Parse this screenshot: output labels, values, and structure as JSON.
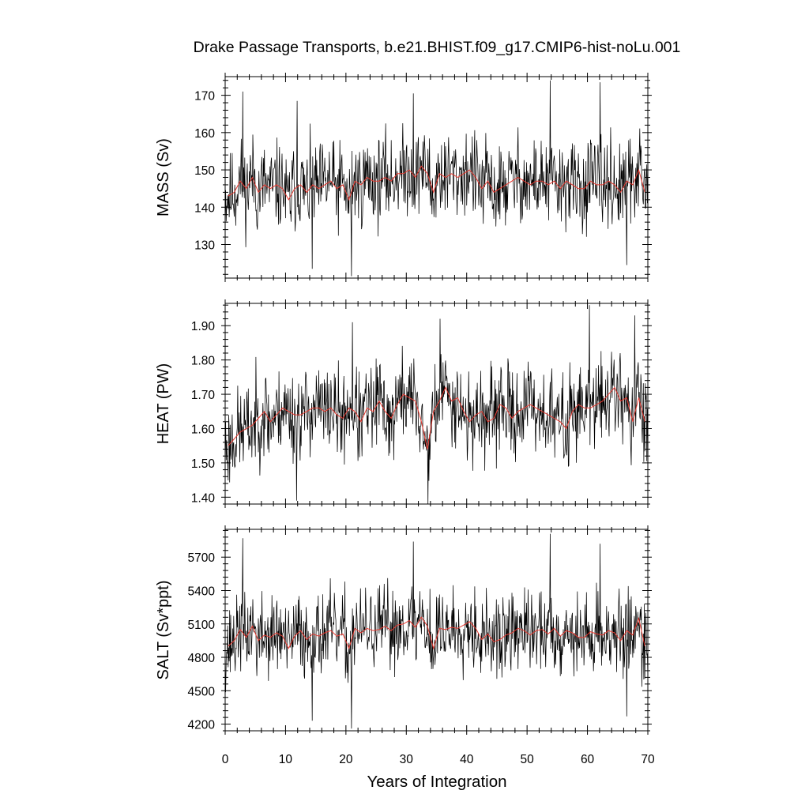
{
  "chart_data": {
    "title": "Drake Passage Transports, b.e21.BHIST.f09_g17.CMIP6-hist-noLu.001",
    "xlabel": "Years of Integration",
    "xlim": [
      0,
      70
    ],
    "xticks": [
      0,
      10,
      20,
      30,
      40,
      50,
      60,
      70
    ],
    "xtick_labels": [
      "0",
      "10",
      "20",
      "30",
      "40",
      "50",
      "60",
      "70"
    ],
    "grid": false,
    "colors": {
      "monthly": "#000000",
      "annual": "#e8382f"
    },
    "panels": [
      {
        "type": "line",
        "ylabel": "MASS (Sv)",
        "ylim": [
          121,
          175
        ],
        "yticks": [
          130,
          140,
          150,
          160,
          170
        ],
        "ytick_labels": [
          "130",
          "140",
          "150",
          "160",
          "170"
        ],
        "annual_x": [
          0.5,
          1.5,
          2.5,
          3.5,
          4.5,
          5.5,
          6.5,
          7.5,
          8.5,
          9.5,
          10.5,
          11.5,
          12.5,
          13.5,
          14.5,
          15.5,
          16.5,
          17.5,
          18.5,
          19.5,
          20.5,
          21.5,
          22.5,
          23.5,
          24.5,
          25.5,
          26.5,
          27.5,
          28.5,
          29.5,
          30.5,
          31.5,
          32.5,
          33.5,
          34.5,
          35.5,
          36.5,
          37.5,
          38.5,
          39.5,
          40.5,
          41.5,
          42.5,
          43.5,
          44.5,
          45.5,
          46.5,
          47.5,
          48.5,
          49.5,
          50.5,
          51.5,
          52.5,
          53.5,
          54.5,
          55.5,
          56.5,
          57.5,
          58.5,
          59.5,
          60.5,
          61.5,
          62.5,
          63.5,
          64.5,
          65.5,
          66.5,
          67.5,
          68.5,
          69.5
        ],
        "annual": [
          143,
          144,
          147,
          145,
          148,
          144,
          146,
          145,
          146,
          145,
          142,
          145,
          146,
          144,
          146,
          145,
          146,
          147,
          145,
          146,
          142,
          147,
          146,
          148,
          147,
          147,
          148,
          147,
          149,
          149,
          150,
          148,
          151,
          149,
          144,
          149,
          148,
          149,
          148,
          149,
          150,
          148,
          145,
          147,
          144,
          145,
          146,
          147,
          148,
          147,
          146,
          147,
          147,
          146,
          147,
          145,
          147,
          146,
          145,
          145,
          147,
          146,
          146,
          147,
          146,
          144,
          147,
          146,
          150,
          144
        ],
        "monthly_seed": 11,
        "monthly_sd": 8.5,
        "monthly_spikes": [
          [
            2.9,
            171
          ],
          [
            14.4,
            123.5
          ],
          [
            20.9,
            121.5
          ],
          [
            53.8,
            174
          ],
          [
            62.1,
            173.5
          ],
          [
            66.5,
            124.5
          ],
          [
            31.2,
            170.5
          ],
          [
            11.9,
            168.5
          ]
        ]
      },
      {
        "type": "line",
        "ylabel": "HEAT (PW)",
        "ylim": [
          1.38,
          1.965
        ],
        "yticks": [
          1.4,
          1.5,
          1.6,
          1.7,
          1.8,
          1.9
        ],
        "ytick_labels": [
          "1.40",
          "1.50",
          "1.60",
          "1.70",
          "1.80",
          "1.90"
        ],
        "annual_x": [
          0.5,
          1.5,
          2.5,
          3.5,
          4.5,
          5.5,
          6.5,
          7.5,
          8.5,
          9.5,
          10.5,
          11.5,
          12.5,
          13.5,
          14.5,
          15.5,
          16.5,
          17.5,
          18.5,
          19.5,
          20.5,
          21.5,
          22.5,
          23.5,
          24.5,
          25.5,
          26.5,
          27.5,
          28.5,
          29.5,
          30.5,
          31.5,
          32.5,
          33.5,
          34.5,
          35.5,
          36.5,
          37.5,
          38.5,
          39.5,
          40.5,
          41.5,
          42.5,
          43.5,
          44.5,
          45.5,
          46.5,
          47.5,
          48.5,
          49.5,
          50.5,
          51.5,
          52.5,
          53.5,
          54.5,
          55.5,
          56.5,
          57.5,
          58.5,
          59.5,
          60.5,
          61.5,
          62.5,
          63.5,
          64.5,
          65.5,
          66.5,
          67.5,
          68.5,
          69.5
        ],
        "annual": [
          1.55,
          1.57,
          1.59,
          1.6,
          1.61,
          1.63,
          1.65,
          1.62,
          1.64,
          1.66,
          1.65,
          1.64,
          1.64,
          1.65,
          1.66,
          1.66,
          1.65,
          1.66,
          1.64,
          1.63,
          1.66,
          1.65,
          1.62,
          1.66,
          1.65,
          1.68,
          1.65,
          1.63,
          1.67,
          1.7,
          1.69,
          1.68,
          1.62,
          1.54,
          1.65,
          1.68,
          1.72,
          1.68,
          1.69,
          1.65,
          1.62,
          1.64,
          1.65,
          1.62,
          1.63,
          1.67,
          1.66,
          1.63,
          1.65,
          1.66,
          1.67,
          1.66,
          1.65,
          1.64,
          1.63,
          1.62,
          1.6,
          1.65,
          1.67,
          1.66,
          1.66,
          1.67,
          1.68,
          1.7,
          1.72,
          1.68,
          1.69,
          1.62,
          1.69,
          1.62
        ],
        "monthly_seed": 23,
        "monthly_sd": 0.095,
        "monthly_spikes": [
          [
            60.3,
            1.96
          ],
          [
            33.6,
            1.38
          ],
          [
            11.8,
            1.39
          ],
          [
            67.8,
            1.93
          ],
          [
            35.6,
            1.92
          ],
          [
            21.1,
            1.91
          ]
        ]
      },
      {
        "type": "line",
        "ylabel": "SALT (Sv*ppt)",
        "ylim": [
          4140,
          5950
        ],
        "yticks": [
          4200,
          4500,
          4800,
          5100,
          5400,
          5700
        ],
        "ytick_labels": [
          "4200",
          "4500",
          "4800",
          "5100",
          "5400",
          "5700"
        ],
        "annual_x": [
          0.5,
          1.5,
          2.5,
          3.5,
          4.5,
          5.5,
          6.5,
          7.5,
          8.5,
          9.5,
          10.5,
          11.5,
          12.5,
          13.5,
          14.5,
          15.5,
          16.5,
          17.5,
          18.5,
          19.5,
          20.5,
          21.5,
          22.5,
          23.5,
          24.5,
          25.5,
          26.5,
          27.5,
          28.5,
          29.5,
          30.5,
          31.5,
          32.5,
          33.5,
          34.5,
          35.5,
          36.5,
          37.5,
          38.5,
          39.5,
          40.5,
          41.5,
          42.5,
          43.5,
          44.5,
          45.5,
          46.5,
          47.5,
          48.5,
          49.5,
          50.5,
          51.5,
          52.5,
          53.5,
          54.5,
          55.5,
          56.5,
          57.5,
          58.5,
          59.5,
          60.5,
          61.5,
          62.5,
          63.5,
          64.5,
          65.5,
          66.5,
          67.5,
          68.5,
          69.5
        ],
        "annual": [
          4900,
          4950,
          5050,
          4980,
          5080,
          4950,
          5000,
          4980,
          5020,
          4990,
          4880,
          4990,
          5040,
          4960,
          5010,
          4990,
          5020,
          5040,
          4990,
          5010,
          4880,
          5060,
          5020,
          5060,
          5040,
          5050,
          5080,
          5040,
          5090,
          5100,
          5130,
          5070,
          5160,
          5080,
          4880,
          5060,
          5050,
          5070,
          5060,
          5090,
          5120,
          5060,
          4960,
          5010,
          4940,
          4960,
          5000,
          5020,
          5060,
          5040,
          5000,
          5040,
          5050,
          5010,
          5060,
          4990,
          5040,
          5020,
          4980,
          4980,
          5030,
          5010,
          5000,
          5040,
          5020,
          4950,
          5040,
          5000,
          5150,
          4900
        ],
        "monthly_seed": 37,
        "monthly_sd": 270,
        "monthly_spikes": [
          [
            2.9,
            5870
          ],
          [
            14.4,
            4230
          ],
          [
            20.9,
            4160
          ],
          [
            53.8,
            5910
          ],
          [
            62.1,
            5820
          ],
          [
            66.5,
            4270
          ],
          [
            31.2,
            5840
          ]
        ]
      }
    ]
  }
}
